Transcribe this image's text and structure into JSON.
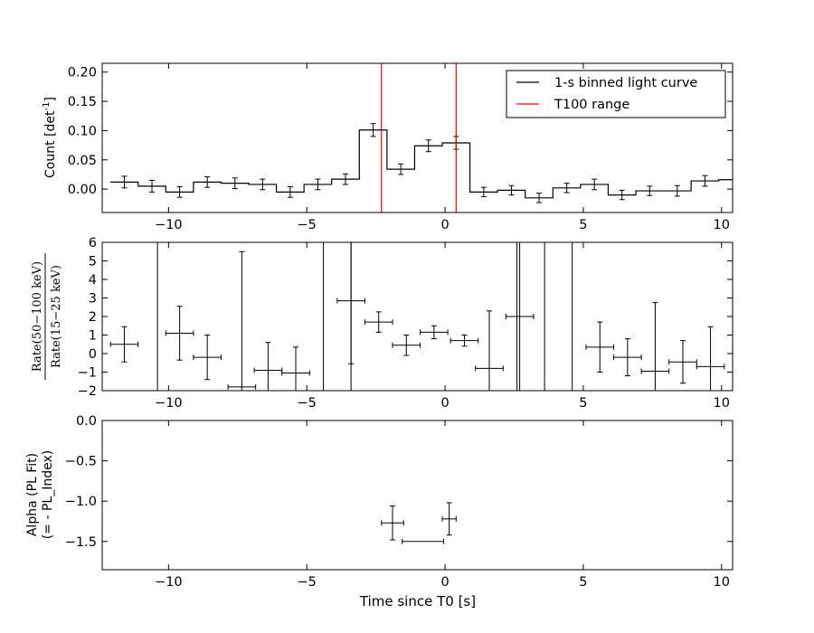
{
  "figure": {
    "xlabel": "Time since T0 [s]"
  },
  "chart_data": [
    {
      "type": "line",
      "ylabel": "Count [det",
      "ylabel_sup": "-1",
      "ylabel_tail": "]",
      "xlim": [
        -12.4,
        10.4
      ],
      "ylim": [
        -0.04,
        0.215
      ],
      "xticks": [
        -10,
        -5,
        0,
        5,
        10
      ],
      "xtick_labels": [
        "−10",
        "−5",
        "0",
        "5",
        "10"
      ],
      "yticks": [
        0.0,
        0.05,
        0.1,
        0.15,
        0.2
      ],
      "ytick_labels": [
        "0.00",
        "0.05",
        "0.10",
        "0.15",
        "0.20"
      ],
      "legend": {
        "placement": "top-right",
        "entries": [
          "1-s binned light curve",
          "T100 range"
        ]
      },
      "t100_lines": [
        -2.3,
        0.4
      ],
      "colors": {
        "curve": "#000000",
        "t100": "#ff0000"
      },
      "step_edges": [
        -12.1,
        -11.1,
        -10.1,
        -9.1,
        -8.1,
        -7.1,
        -6.1,
        -5.1,
        -4.1,
        -3.1,
        -2.1,
        -1.1,
        -0.1,
        0.9,
        1.9,
        2.9,
        3.9,
        4.9,
        5.9,
        6.9,
        7.9,
        8.9,
        9.9,
        10.4
      ],
      "series": [
        {
          "x": [
            -11.6,
            -10.6,
            -9.6,
            -8.6,
            -7.6,
            -6.6,
            -5.6,
            -4.6,
            -3.6,
            -2.6,
            -1.6,
            -0.6,
            0.4,
            1.4,
            2.4,
            3.4,
            4.4,
            5.4,
            6.4,
            7.4,
            8.4,
            9.4,
            10.4
          ],
          "y": [
            0.012,
            0.005,
            -0.005,
            0.012,
            0.01,
            0.008,
            -0.005,
            0.008,
            0.017,
            0.101,
            0.034,
            0.074,
            0.079,
            -0.005,
            -0.002,
            -0.015,
            0.002,
            0.008,
            -0.01,
            -0.003,
            -0.003,
            0.014,
            0.016
          ],
          "yerr": [
            0.01,
            0.01,
            0.009,
            0.009,
            0.009,
            0.009,
            0.009,
            0.009,
            0.009,
            0.011,
            0.009,
            0.01,
            0.011,
            0.008,
            0.008,
            0.008,
            0.008,
            0.009,
            0.008,
            0.008,
            0.009,
            0.009,
            0.009
          ]
        }
      ]
    },
    {
      "type": "scatter",
      "ylabel": "Rate(50−100 keV)",
      "ylabel_den": "Rate(15−25 keV)",
      "xlim": [
        -12.4,
        10.4
      ],
      "ylim": [
        -2,
        6
      ],
      "xticks": [
        -10,
        -5,
        0,
        5,
        10
      ],
      "xtick_labels": [
        "−10",
        "−5",
        "0",
        "5",
        "10"
      ],
      "yticks": [
        -2,
        -1,
        0,
        1,
        2,
        3,
        4,
        5,
        6
      ],
      "ytick_labels": [
        "−2",
        "−1",
        "0",
        "1",
        "2",
        "3",
        "4",
        "5",
        "6"
      ],
      "series": [
        {
          "x": [
            -11.6,
            -9.6,
            -8.6,
            -7.35,
            -6.4,
            -5.4,
            -3.4,
            -2.4,
            -1.4,
            -0.4,
            0.7,
            1.6,
            2.7,
            5.6,
            6.6,
            7.6,
            8.6,
            9.6
          ],
          "y": [
            0.5,
            1.1,
            -0.2,
            -1.8,
            -0.9,
            -1.05,
            2.85,
            1.7,
            0.45,
            1.15,
            0.7,
            -0.8,
            2.0,
            0.35,
            -0.2,
            -0.95,
            -0.45,
            -0.7
          ],
          "yerr": [
            0.95,
            1.45,
            1.2,
            7.3,
            1.5,
            1.4,
            3.4,
            0.55,
            0.55,
            0.35,
            0.3,
            3.1,
            4.5,
            1.35,
            1.0,
            3.7,
            1.15,
            2.15
          ],
          "xerr": [
            0.5,
            0.5,
            0.5,
            0.5,
            0.5,
            0.5,
            0.5,
            0.5,
            0.5,
            0.5,
            0.5,
            0.5,
            0.5,
            0.5,
            0.5,
            0.5,
            0.5,
            0.5
          ]
        }
      ],
      "vertical_lines": [
        -10.4,
        -4.4,
        -3.4,
        2.6,
        3.6,
        4.6
      ]
    },
    {
      "type": "scatter",
      "ylabel": "Alpha (PL Fit)",
      "ylabel2": "(= - PL_Index)",
      "xlim": [
        -12.4,
        10.4
      ],
      "ylim": [
        -1.85,
        0.0
      ],
      "xticks": [
        -10,
        -5,
        0,
        5,
        10
      ],
      "xtick_labels": [
        "−10",
        "−5",
        "0",
        "5",
        "10"
      ],
      "yticks": [
        0.0,
        -0.5,
        -1.0,
        -1.5
      ],
      "ytick_labels": [
        "0.0",
        "−0.5",
        "−1.0",
        "−1.5"
      ],
      "series": [
        {
          "x": [
            -1.9,
            -0.8,
            0.15
          ],
          "y": [
            -1.27,
            -1.5,
            -1.22
          ],
          "xerr_lo": [
            0.4,
            0.75,
            0.25
          ],
          "xerr_hi": [
            0.4,
            0.75,
            0.25
          ],
          "yerr": [
            0.21,
            0.0,
            0.2
          ]
        }
      ]
    }
  ]
}
